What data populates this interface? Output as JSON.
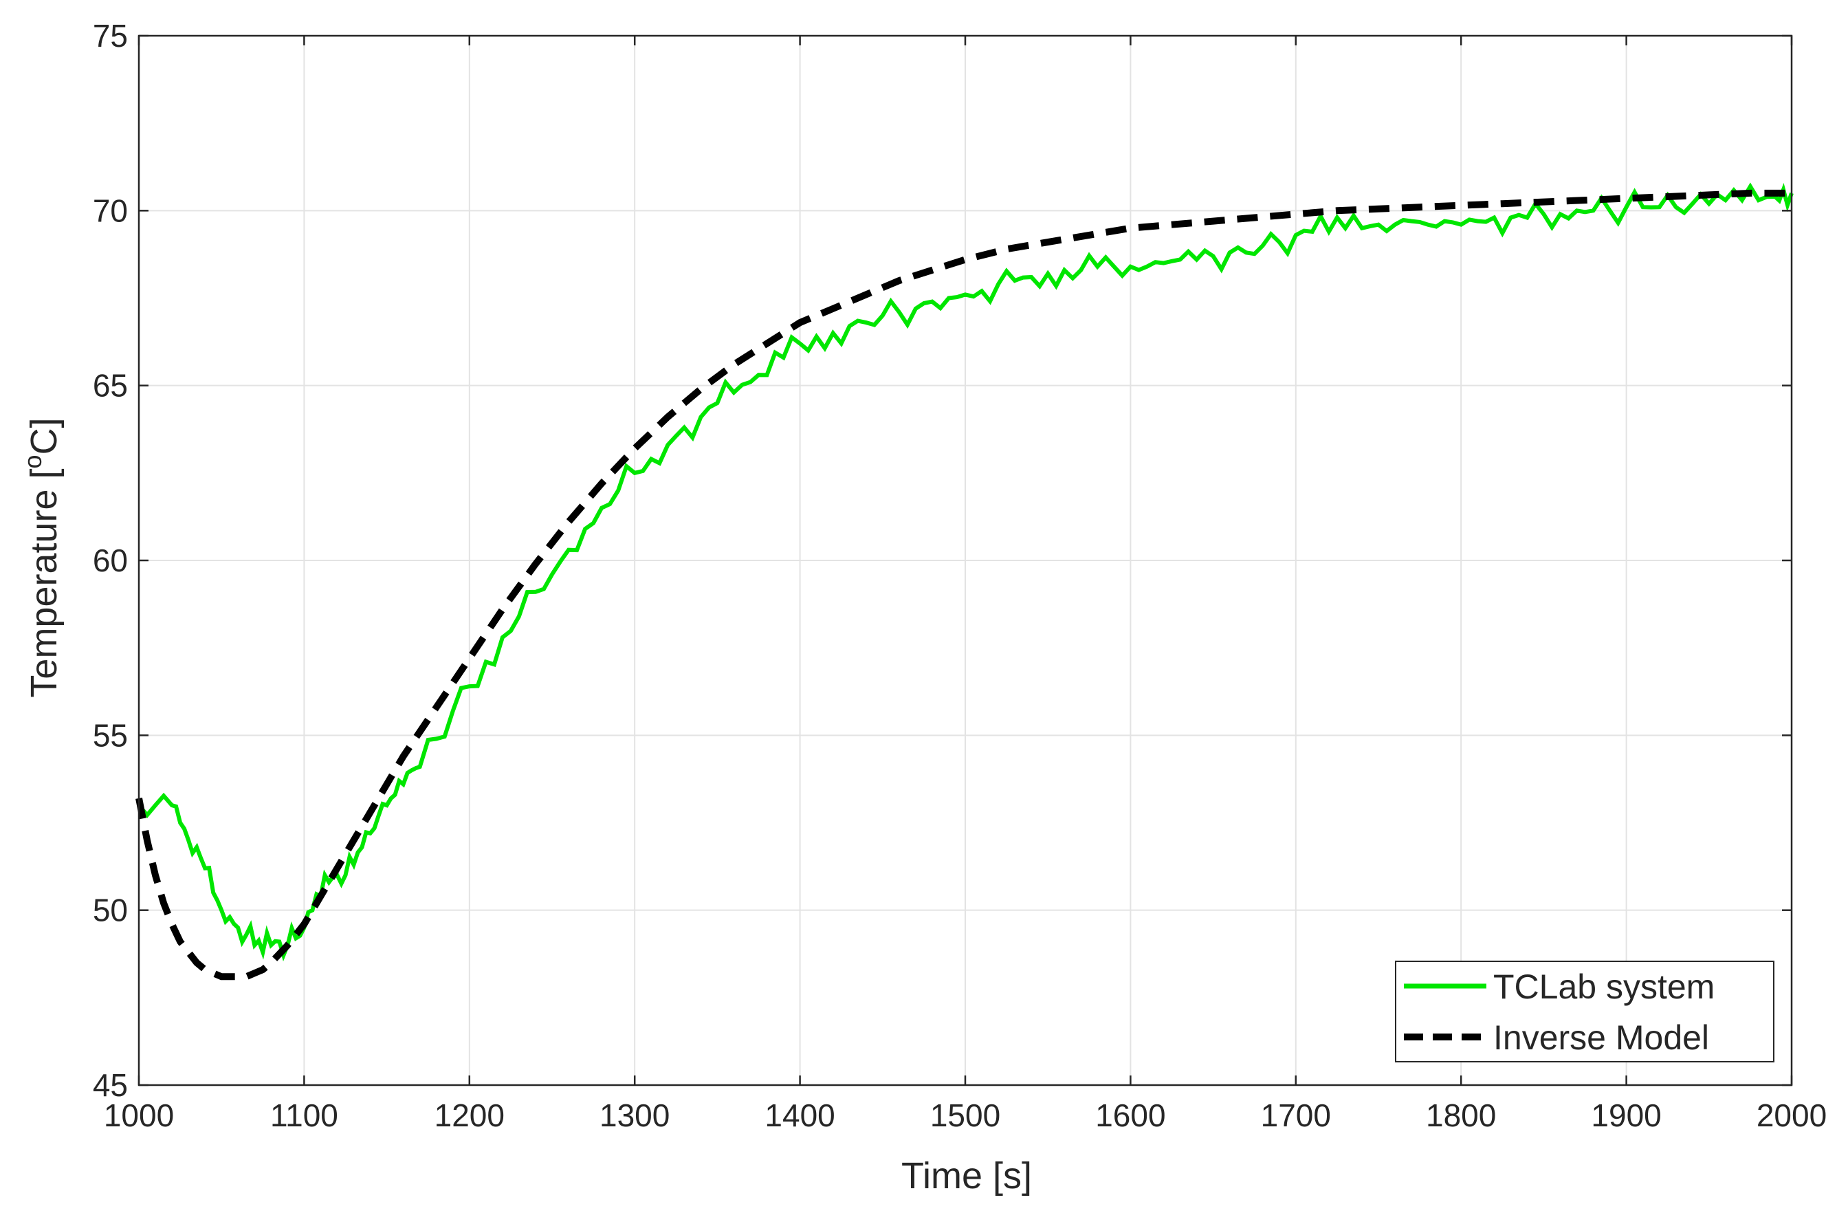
{
  "chart_data": {
    "type": "line",
    "title": "",
    "xlabel": "Time [s]",
    "ylabel_main": "Temperature [",
    "ylabel_sup": "o",
    "ylabel_tail": "C]",
    "xlim": [
      1000,
      2000
    ],
    "ylim": [
      45,
      75
    ],
    "xticks": [
      1000,
      1100,
      1200,
      1300,
      1400,
      1500,
      1600,
      1700,
      1800,
      1900,
      2000
    ],
    "yticks": [
      45,
      50,
      55,
      60,
      65,
      70,
      75
    ],
    "grid": true,
    "legend_position": "bottom-right",
    "series": [
      {
        "name": "TCLab system",
        "color": "#00e600",
        "style": "solid",
        "x": [
          1000,
          1010,
          1020,
          1025,
          1030,
          1035,
          1040,
          1045,
          1050,
          1055,
          1060,
          1065,
          1070,
          1075,
          1080,
          1085,
          1090,
          1095,
          1100,
          1105,
          1110,
          1115,
          1120,
          1125,
          1130,
          1135,
          1140,
          1145,
          1150,
          1155,
          1160,
          1165,
          1170,
          1180,
          1190,
          1200,
          1210,
          1220,
          1230,
          1240,
          1250,
          1260,
          1270,
          1280,
          1290,
          1300,
          1310,
          1320,
          1330,
          1340,
          1350,
          1360,
          1370,
          1380,
          1390,
          1400,
          1410,
          1420,
          1430,
          1440,
          1450,
          1460,
          1470,
          1480,
          1490,
          1500,
          1510,
          1520,
          1530,
          1540,
          1550,
          1560,
          1570,
          1580,
          1590,
          1600,
          1610,
          1620,
          1630,
          1640,
          1650,
          1660,
          1670,
          1680,
          1690,
          1700,
          1710,
          1720,
          1730,
          1740,
          1750,
          1760,
          1770,
          1780,
          1790,
          1800,
          1810,
          1820,
          1830,
          1840,
          1850,
          1860,
          1870,
          1880,
          1890,
          1900,
          1910,
          1920,
          1930,
          1940,
          1950,
          1960,
          1970,
          1980,
          1990,
          1995,
          2000
        ],
        "y": [
          53.0,
          53.0,
          53.0,
          52.5,
          52.0,
          51.8,
          51.2,
          50.5,
          50.0,
          49.8,
          49.5,
          49.3,
          49.0,
          48.8,
          49.0,
          49.1,
          49.0,
          49.2,
          49.5,
          50.0,
          50.4,
          50.8,
          51.0,
          51.0,
          51.3,
          51.8,
          52.2,
          52.7,
          53.0,
          53.3,
          53.6,
          54.0,
          54.1,
          54.9,
          55.7,
          56.4,
          57.1,
          57.8,
          58.4,
          59.1,
          59.6,
          60.3,
          60.9,
          61.5,
          62.0,
          62.5,
          62.9,
          63.3,
          63.8,
          64.1,
          64.5,
          64.8,
          65.1,
          65.3,
          65.8,
          66.2,
          66.4,
          66.5,
          66.7,
          66.8,
          67.0,
          67.1,
          67.2,
          67.4,
          67.5,
          67.6,
          67.7,
          67.9,
          68.0,
          68.1,
          68.2,
          68.3,
          68.3,
          68.4,
          68.4,
          68.4,
          68.4,
          68.5,
          68.6,
          68.6,
          68.7,
          68.8,
          68.8,
          69.0,
          69.1,
          69.3,
          69.4,
          69.4,
          69.5,
          69.5,
          69.6,
          69.6,
          69.7,
          69.6,
          69.7,
          69.6,
          69.7,
          69.8,
          69.8,
          69.8,
          69.9,
          69.9,
          70.0,
          70.0,
          70.0,
          70.1,
          70.1,
          70.1,
          70.1,
          70.2,
          70.2,
          70.3,
          70.3,
          70.3,
          70.4,
          70.6,
          70.5
        ]
      },
      {
        "name": "Inverse Model",
        "color": "#000000",
        "style": "dashed",
        "x": [
          1000,
          1005,
          1010,
          1015,
          1020,
          1025,
          1030,
          1035,
          1040,
          1045,
          1050,
          1055,
          1060,
          1065,
          1070,
          1075,
          1080,
          1090,
          1100,
          1110,
          1120,
          1130,
          1140,
          1150,
          1160,
          1170,
          1180,
          1190,
          1200,
          1220,
          1240,
          1260,
          1280,
          1300,
          1320,
          1340,
          1360,
          1380,
          1400,
          1420,
          1440,
          1460,
          1480,
          1500,
          1525,
          1550,
          1575,
          1600,
          1625,
          1650,
          1675,
          1700,
          1725,
          1750,
          1775,
          1800,
          1825,
          1850,
          1875,
          1900,
          1925,
          1950,
          1975,
          2000
        ],
        "y": [
          53.2,
          52.0,
          51.0,
          50.2,
          49.6,
          49.1,
          48.8,
          48.5,
          48.3,
          48.2,
          48.1,
          48.1,
          48.1,
          48.1,
          48.2,
          48.3,
          48.5,
          49.0,
          49.6,
          50.4,
          51.2,
          52.0,
          52.8,
          53.6,
          54.4,
          55.1,
          55.8,
          56.5,
          57.2,
          58.6,
          59.9,
          61.1,
          62.2,
          63.2,
          64.1,
          64.9,
          65.6,
          66.2,
          66.8,
          67.2,
          67.6,
          68.0,
          68.3,
          68.6,
          68.9,
          69.1,
          69.3,
          69.5,
          69.6,
          69.7,
          69.8,
          69.9,
          70.0,
          70.05,
          70.1,
          70.15,
          70.2,
          70.25,
          70.3,
          70.35,
          70.4,
          70.45,
          70.5,
          70.5
        ]
      }
    ]
  }
}
